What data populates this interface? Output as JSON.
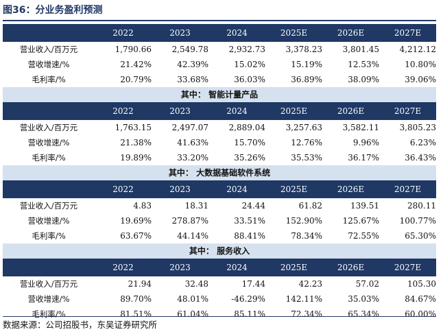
{
  "figure": {
    "title": "图36：分业务盈利预测",
    "source": "数据来源：公司招股书，东吴证券研究所"
  },
  "table": {
    "years": [
      "2022",
      "2023",
      "2024",
      "2025E",
      "2026E",
      "2027E"
    ],
    "sections": [
      {
        "heading": "",
        "rows": [
          {
            "label": "营业收入/百万元",
            "values": [
              "1,790.66",
              "2,549.78",
              "2,932.73",
              "3,378.23",
              "3,801.45",
              "4,212.12"
            ]
          },
          {
            "label": "营收增速/%",
            "values": [
              "21.42%",
              "42.39%",
              "15.02%",
              "15.19%",
              "12.53%",
              "10.80%"
            ]
          },
          {
            "label": "毛利率/%",
            "values": [
              "20.79%",
              "33.68%",
              "36.03%",
              "36.89%",
              "38.09%",
              "39.06%"
            ]
          }
        ]
      },
      {
        "heading": "其中：  智能计量产品",
        "rows": [
          {
            "label": "营业收入/百万元",
            "values": [
              "1,763.15",
              "2,497.07",
              "2,889.04",
              "3,257.63",
              "3,582.11",
              "3,805.23"
            ]
          },
          {
            "label": "营收增速/%",
            "values": [
              "21.38%",
              "41.63%",
              "15.70%",
              "12.76%",
              "9.96%",
              "6.23%"
            ]
          },
          {
            "label": "毛利率/%",
            "values": [
              "19.89%",
              "33.20%",
              "35.26%",
              "35.53%",
              "36.17%",
              "36.43%"
            ]
          }
        ]
      },
      {
        "heading": "其中：  大数据基础软件系统",
        "rows": [
          {
            "label": "营业收入/百万元",
            "values": [
              "4.83",
              "18.31",
              "24.44",
              "61.82",
              "139.51",
              "280.11"
            ]
          },
          {
            "label": "营收增速/%",
            "values": [
              "19.69%",
              "278.87%",
              "33.51%",
              "152.90%",
              "125.67%",
              "100.77%"
            ]
          },
          {
            "label": "毛利率/%",
            "values": [
              "63.67%",
              "44.14%",
              "88.41%",
              "78.34%",
              "72.55%",
              "65.30%"
            ]
          }
        ]
      },
      {
        "heading": "其中：  服务收入",
        "rows": [
          {
            "label": "营业收入/百万元",
            "values": [
              "21.94",
              "32.48",
              "17.44",
              "42.23",
              "57.02",
              "105.30"
            ]
          },
          {
            "label": "营收增速/%",
            "values": [
              "89.70%",
              "48.01%",
              "-46.29%",
              "142.11%",
              "35.03%",
              "84.67%"
            ]
          },
          {
            "label": "毛利率/%",
            "values": [
              "81.51%",
              "61.04%",
              "85.11%",
              "72.34%",
              "65.34%",
              "60.00%"
            ]
          }
        ]
      }
    ]
  }
}
